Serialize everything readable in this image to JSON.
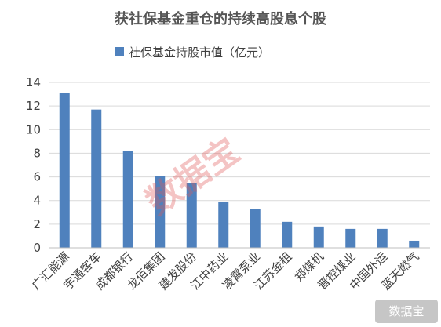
{
  "chart_data": {
    "type": "bar",
    "title": "获社保基金重仓的持续高股息个股",
    "legend_position": "top",
    "grid": true,
    "ylim": [
      0,
      14
    ],
    "yticks": [
      0,
      2,
      4,
      6,
      8,
      10,
      12,
      14
    ],
    "categories": [
      "广汇能源",
      "宇通客车",
      "成都银行",
      "龙佰集团",
      "建发股份",
      "江中药业",
      "凌霄泵业",
      "江苏金租",
      "郑煤机",
      "晋控煤业",
      "中国外运",
      "蓝天燃气"
    ],
    "series": [
      {
        "name": "社保基金持股市值（亿元）",
        "color": "#4f81bd",
        "values": [
          13.1,
          11.7,
          8.2,
          6.1,
          5.5,
          3.9,
          3.3,
          2.2,
          1.8,
          1.6,
          1.6,
          0.6
        ]
      }
    ]
  },
  "watermark": "数据宝",
  "corner_badge": "数据宝"
}
